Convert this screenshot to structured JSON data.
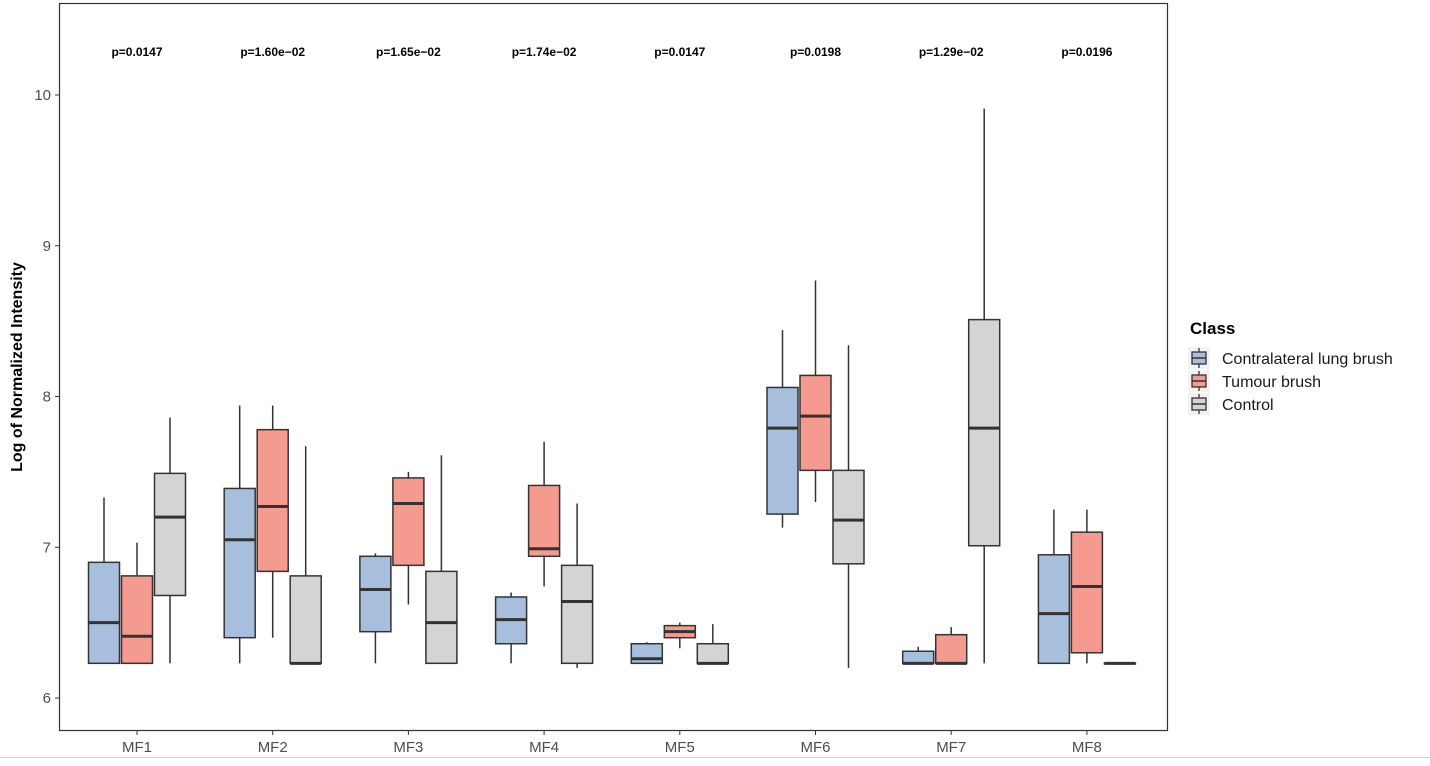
{
  "chart_data": {
    "type": "boxplot",
    "title": "",
    "xlabel": "",
    "ylabel": "Log of Normalized Intensity",
    "ylim": [
      5.78,
      10.58
    ],
    "yticks": [
      6,
      7,
      8,
      9,
      10
    ],
    "grid": false,
    "categories": [
      "MF1",
      "MF2",
      "MF3",
      "MF4",
      "MF5",
      "MF6",
      "MF7",
      "MF8"
    ],
    "annotations": [
      "p=0.0147",
      "p=1.60e−02",
      "p=1.65e−02",
      "p=1.74e−02",
      "p=0.0147",
      "p=0.0198",
      "p=1.29e−02",
      "p=0.0196"
    ],
    "legend": {
      "title": "Class",
      "position": "right"
    },
    "series": [
      {
        "name": "Contralateral lung brush",
        "color": "#a7bfdc",
        "boxes": [
          {
            "min": 6.23,
            "q1": 6.23,
            "median": 6.5,
            "q3": 6.9,
            "max": 7.33
          },
          {
            "min": 6.23,
            "q1": 6.4,
            "median": 7.05,
            "q3": 7.39,
            "max": 7.94
          },
          {
            "min": 6.23,
            "q1": 6.44,
            "median": 6.72,
            "q3": 6.94,
            "max": 6.96
          },
          {
            "min": 6.23,
            "q1": 6.36,
            "median": 6.52,
            "q3": 6.67,
            "max": 6.7
          },
          {
            "min": 6.23,
            "q1": 6.23,
            "median": 6.26,
            "q3": 6.36,
            "max": 6.37
          },
          {
            "min": 7.13,
            "q1": 7.22,
            "median": 7.79,
            "q3": 8.06,
            "max": 8.44
          },
          {
            "min": 6.23,
            "q1": 6.23,
            "median": 6.23,
            "q3": 6.31,
            "max": 6.34
          },
          {
            "min": 6.23,
            "q1": 6.23,
            "median": 6.56,
            "q3": 6.95,
            "max": 7.25
          }
        ]
      },
      {
        "name": "Tumour brush",
        "color": "#f59a8e",
        "boxes": [
          {
            "min": 6.23,
            "q1": 6.23,
            "median": 6.41,
            "q3": 6.81,
            "max": 7.03
          },
          {
            "min": 6.4,
            "q1": 6.84,
            "median": 7.27,
            "q3": 7.78,
            "max": 7.94
          },
          {
            "min": 6.62,
            "q1": 6.88,
            "median": 7.29,
            "q3": 7.46,
            "max": 7.5
          },
          {
            "min": 6.74,
            "q1": 6.94,
            "median": 6.99,
            "q3": 7.41,
            "max": 7.7
          },
          {
            "min": 6.33,
            "q1": 6.4,
            "median": 6.44,
            "q3": 6.48,
            "max": 6.5
          },
          {
            "min": 7.3,
            "q1": 7.51,
            "median": 7.87,
            "q3": 8.14,
            "max": 8.77
          },
          {
            "min": 6.23,
            "q1": 6.23,
            "median": 6.23,
            "q3": 6.42,
            "max": 6.47
          },
          {
            "min": 6.23,
            "q1": 6.3,
            "median": 6.74,
            "q3": 7.1,
            "max": 7.25
          }
        ]
      },
      {
        "name": "Control",
        "color": "#d4d4d4",
        "boxes": [
          {
            "min": 6.23,
            "q1": 6.68,
            "median": 7.2,
            "q3": 7.49,
            "max": 7.86
          },
          {
            "min": 6.23,
            "q1": 6.23,
            "median": 6.23,
            "q3": 6.81,
            "max": 7.67
          },
          {
            "min": 6.23,
            "q1": 6.23,
            "median": 6.5,
            "q3": 6.84,
            "max": 7.61
          },
          {
            "min": 6.2,
            "q1": 6.23,
            "median": 6.64,
            "q3": 6.88,
            "max": 7.29
          },
          {
            "min": 6.23,
            "q1": 6.23,
            "median": 6.23,
            "q3": 6.36,
            "max": 6.49
          },
          {
            "min": 6.2,
            "q1": 6.89,
            "median": 7.18,
            "q3": 7.51,
            "max": 8.34
          },
          {
            "min": 6.23,
            "q1": 7.01,
            "median": 7.79,
            "q3": 8.51,
            "max": 9.91
          },
          {
            "min": 6.23,
            "q1": 6.23,
            "median": 6.23,
            "q3": 6.23,
            "max": 6.23
          }
        ]
      }
    ]
  }
}
